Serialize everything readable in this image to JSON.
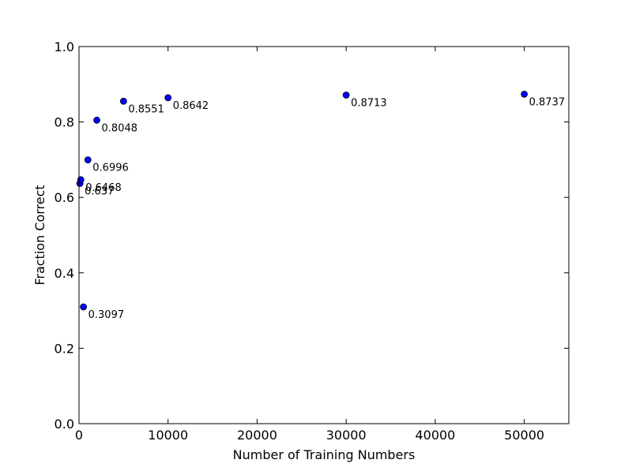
{
  "chart_data": {
    "type": "scatter",
    "title": "",
    "xlabel": "Number of Training Numbers",
    "ylabel": "Fraction Correct",
    "xlim": [
      0,
      55000
    ],
    "ylim": [
      0.0,
      1.0
    ],
    "xticks": [
      0,
      10000,
      20000,
      30000,
      40000,
      50000
    ],
    "xtick_labels": [
      "0",
      "10000",
      "20000",
      "30000",
      "40000",
      "50000"
    ],
    "yticks": [
      0.0,
      0.2,
      0.4,
      0.6,
      0.8,
      1.0
    ],
    "ytick_labels": [
      "0.0",
      "0.2",
      "0.4",
      "0.6",
      "0.8",
      "1.0"
    ],
    "grid": false,
    "marker_color": "#0000ff",
    "series": [
      {
        "points": [
          {
            "x": 100,
            "y": 0.637,
            "label": "0.637"
          },
          {
            "x": 200,
            "y": 0.6468,
            "label": "0.6468"
          },
          {
            "x": 500,
            "y": 0.3097,
            "label": "0.3097"
          },
          {
            "x": 1000,
            "y": 0.6996,
            "label": "0.6996"
          },
          {
            "x": 2000,
            "y": 0.8048,
            "label": "0.8048"
          },
          {
            "x": 5000,
            "y": 0.8551,
            "label": "0.8551"
          },
          {
            "x": 10000,
            "y": 0.8642,
            "label": "0.8642"
          },
          {
            "x": 30000,
            "y": 0.8713,
            "label": "0.8713"
          },
          {
            "x": 50000,
            "y": 0.8737,
            "label": "0.8737"
          }
        ]
      }
    ]
  }
}
